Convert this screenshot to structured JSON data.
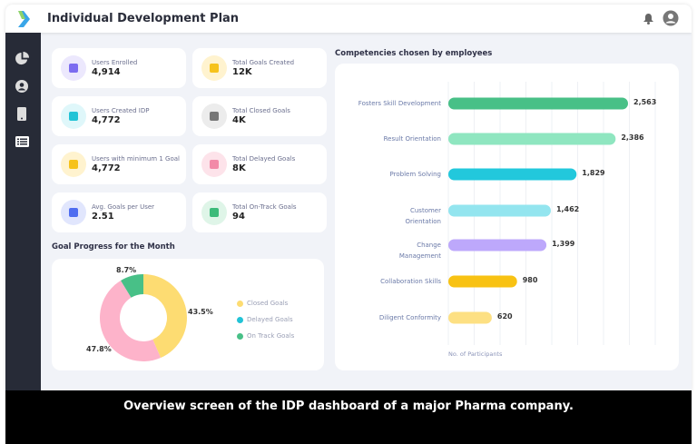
{
  "header": {
    "title": "Individual Development Plan",
    "icons": [
      "bell-icon",
      "user-avatar-icon"
    ]
  },
  "sidebar": {
    "items": [
      "dashboard-pie-icon",
      "profile-icon",
      "mobile-icon",
      "list-icon"
    ]
  },
  "stats": [
    {
      "label": "Users Enrolled",
      "value": "4,914",
      "icon": "users-icon",
      "bg": "#ece8fd",
      "fg": "#7c6cf0"
    },
    {
      "label": "Total Goals Created",
      "value": "12K",
      "icon": "bookmark-icon",
      "bg": "#fff3cf",
      "fg": "#f6c21b"
    },
    {
      "label": "Users Created IDP",
      "value": "4,772",
      "icon": "calendar-check-icon",
      "bg": "#dff7fa",
      "fg": "#22c3d6"
    },
    {
      "label": "Total Closed Goals",
      "value": "4K",
      "icon": "closed-badge-icon",
      "bg": "#ececec",
      "fg": "#777"
    },
    {
      "label": "Users with minimum 1 Goal",
      "value": "4,772",
      "icon": "calendar-icon",
      "bg": "#fff3cf",
      "fg": "#f6c21b"
    },
    {
      "label": "Total Delayed Goals",
      "value": "8K",
      "icon": "calendar-clock-icon",
      "bg": "#fde3ea",
      "fg": "#f28aa8"
    },
    {
      "label": "Avg. Goals per User",
      "value": "2.51",
      "icon": "calculator-icon",
      "bg": "#e1e6fd",
      "fg": "#4f6df0"
    },
    {
      "label": "Total On-Track Goals",
      "value": "94",
      "icon": "bar-chart-icon",
      "bg": "#dff5e8",
      "fg": "#3dbb7a"
    }
  ],
  "caption": "Overview screen of the IDP dashboard of a major Pharma company.",
  "chart_data": [
    {
      "type": "pie",
      "title": "Goal Progress for the Month",
      "donut": true,
      "slices": [
        {
          "label": "Closed Goals",
          "value": 43.5,
          "display": "43.5%",
          "color": "#fddc72"
        },
        {
          "label": "Delayed Goals",
          "value": 47.8,
          "display": "47.8%",
          "color": "#fdb3ca",
          "legend_color": "#22c3d6"
        },
        {
          "label": "On Track Goals",
          "value": 8.7,
          "display": "8.7%",
          "color": "#48c087"
        }
      ],
      "legend": "right"
    },
    {
      "type": "bar",
      "orientation": "horizontal",
      "title": "Competencies chosen by employees",
      "xlabel": "No. of Participants",
      "categories": [
        "Fosters Skill Development",
        "Result Orientation",
        "Problem Solving",
        "Customer Orientation",
        "Change Management",
        "Collaboration Skills",
        "Diligent Conformity"
      ],
      "values": [
        2563,
        2386,
        1829,
        1462,
        1399,
        980,
        620
      ],
      "display": [
        "2,563",
        "2,386",
        "1,829",
        "1,462",
        "1,399",
        "980",
        "620"
      ],
      "colors": [
        "#48c087",
        "#8fe6c0",
        "#22c8dc",
        "#93e5ef",
        "#bda8fb",
        "#f8c213",
        "#fde083"
      ],
      "grid": true
    }
  ]
}
